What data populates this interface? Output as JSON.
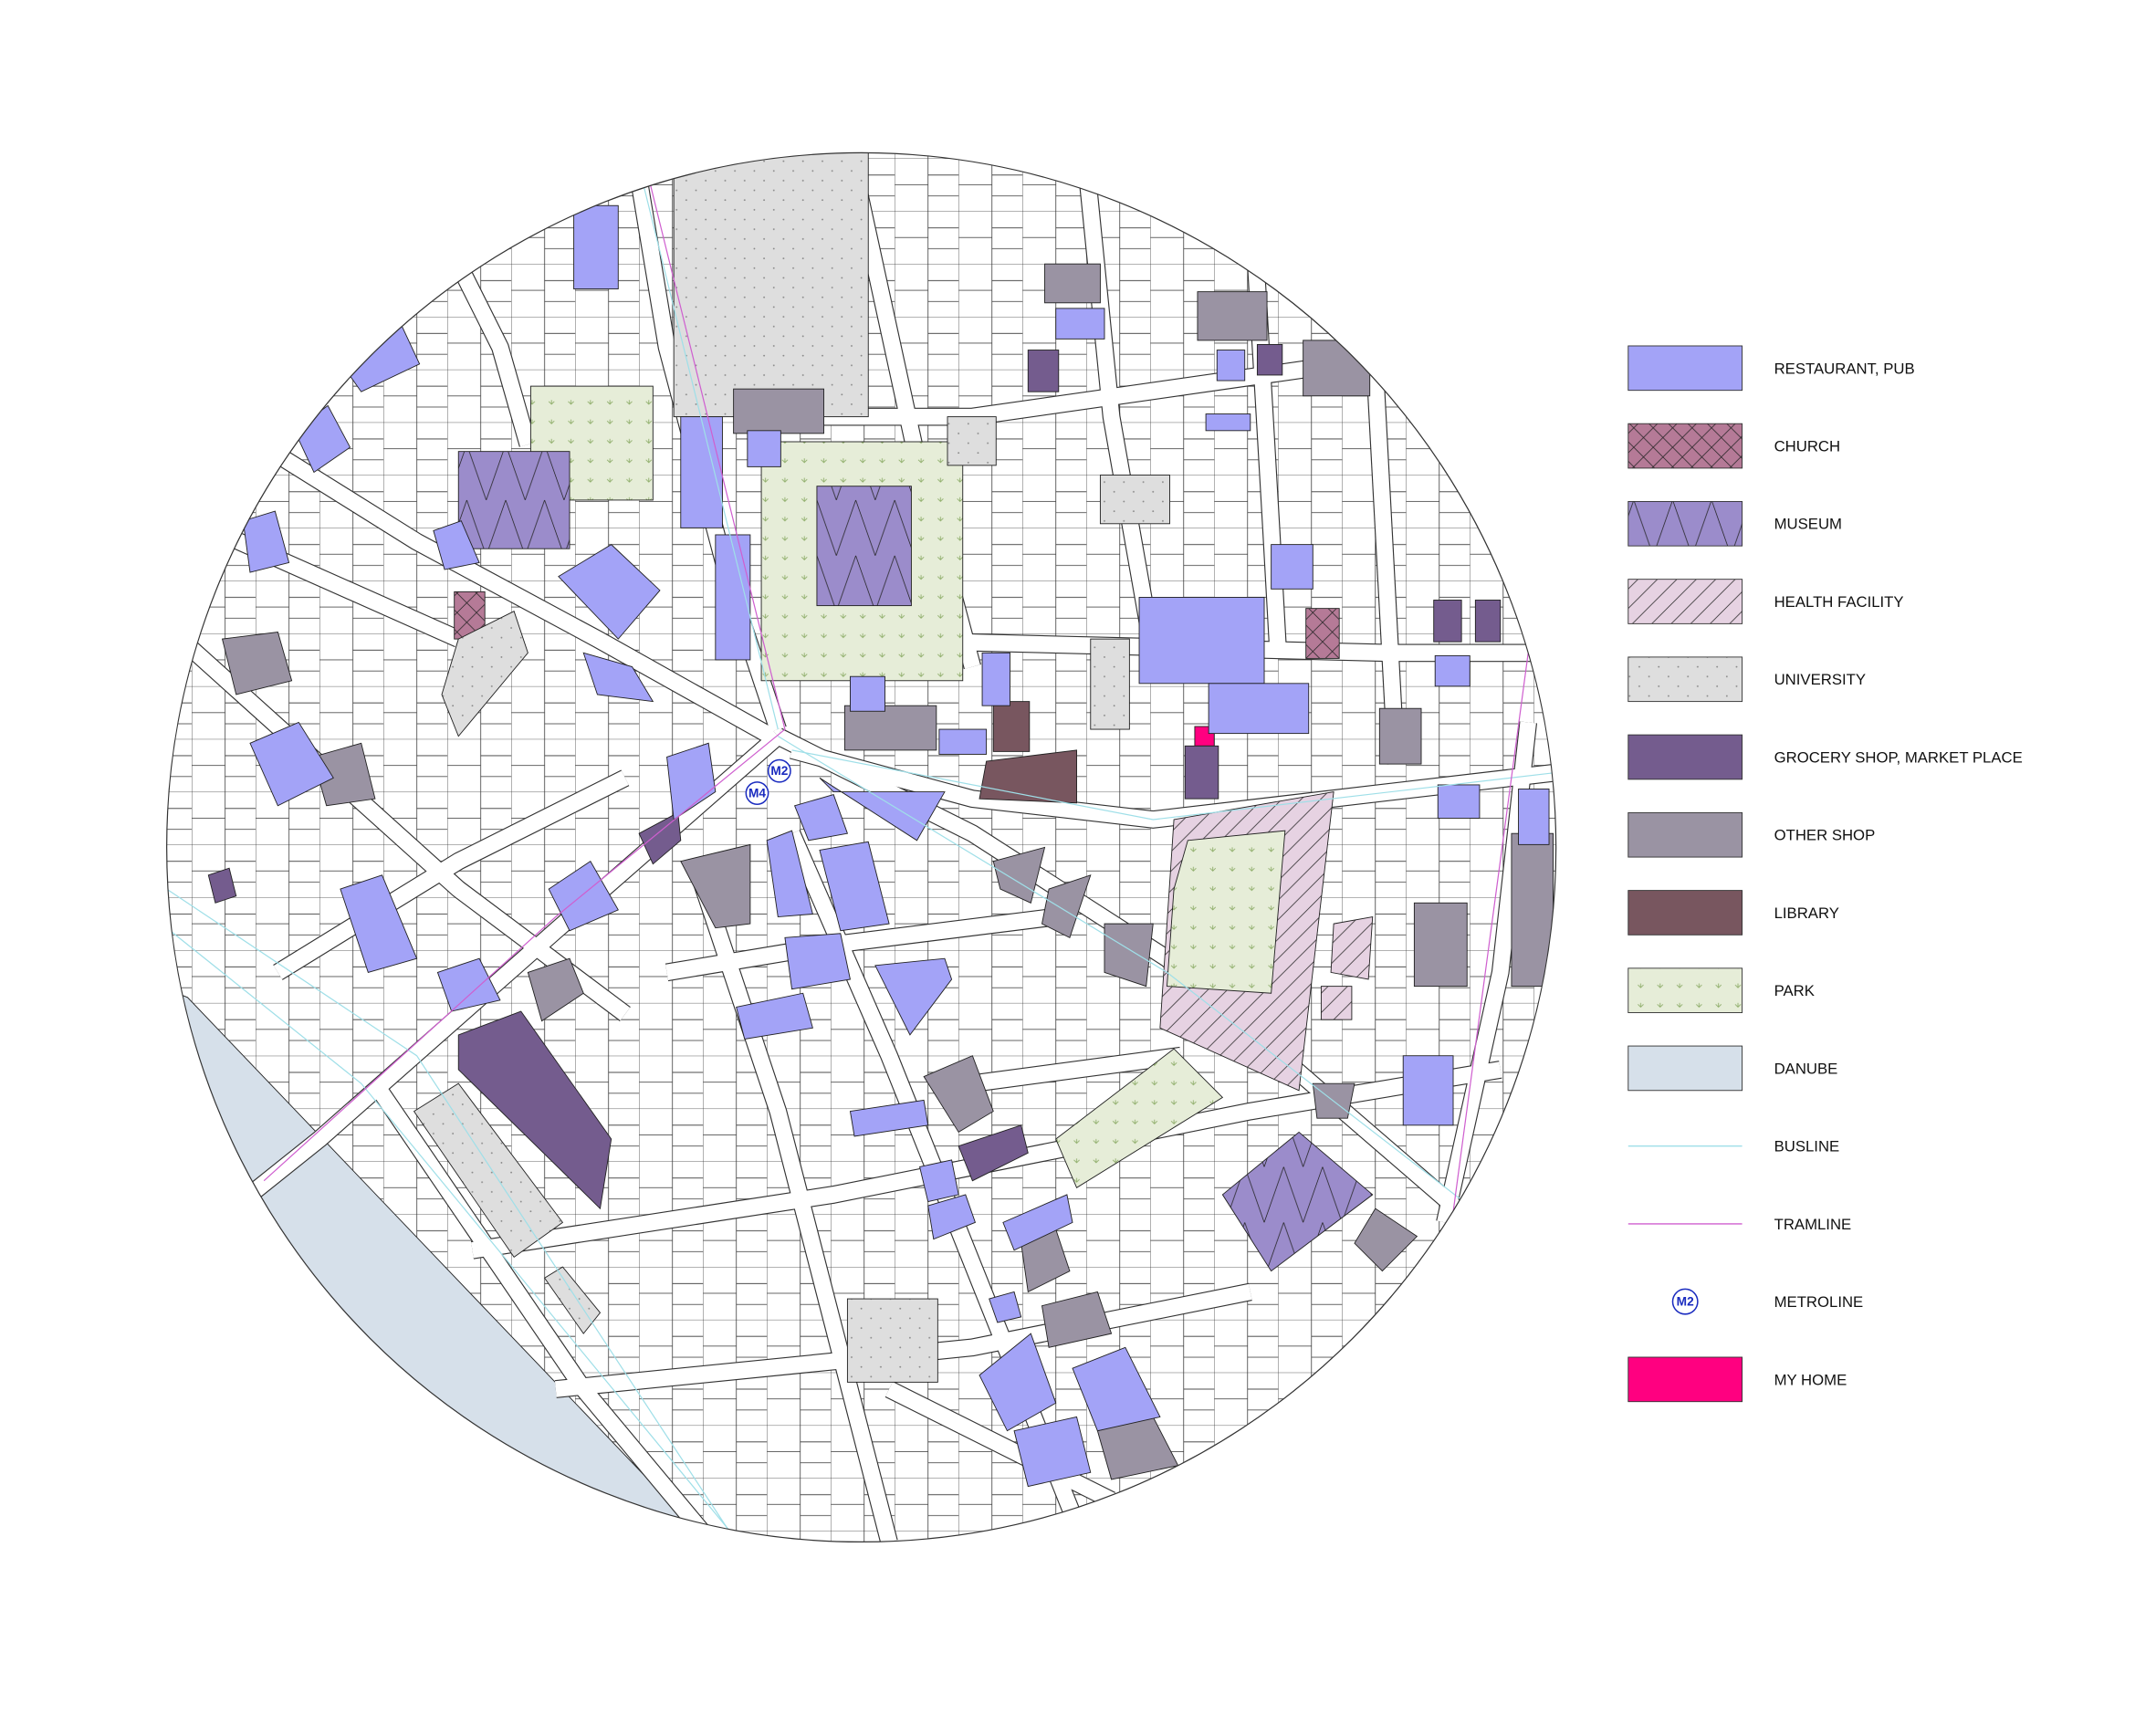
{
  "map": {
    "metro_stations": [
      "M2",
      "M4"
    ],
    "legend": [
      {
        "label": "RESTAURANT, PUB",
        "color": "#a3a3f7"
      },
      {
        "label": "CHURCH",
        "color": "#b57a97",
        "pattern": "crosshatch"
      },
      {
        "label": "MUSEUM",
        "color": "#9b8ccb",
        "pattern": "zigzag"
      },
      {
        "label": "HEALTH FACILITY",
        "color": "#e6d2e2",
        "pattern": "hatch"
      },
      {
        "label": "UNIVERSITY",
        "color": "#dedede",
        "pattern": "dots"
      },
      {
        "label": "GROCERY SHOP, MARKET PLACE",
        "color": "#745c8e"
      },
      {
        "label": "OTHER SHOP",
        "color": "#9a93a3"
      },
      {
        "label": "LIBRARY",
        "color": "#78565f"
      },
      {
        "label": "PARK",
        "color": "#e6edd8",
        "pattern": "sprouts"
      },
      {
        "label": "DANUBE",
        "color": "#d6e0ea"
      },
      {
        "label": "BUSLINE",
        "color": "#9fdfe8",
        "kind": "line"
      },
      {
        "label": "TRAMLINE",
        "color": "#cf5fcf",
        "kind": "line"
      },
      {
        "label": "METROLINE",
        "color": "#1a2bbf",
        "kind": "metro",
        "symbol": "M2"
      },
      {
        "label": "MY HOME",
        "color": "#ff0080"
      }
    ]
  }
}
